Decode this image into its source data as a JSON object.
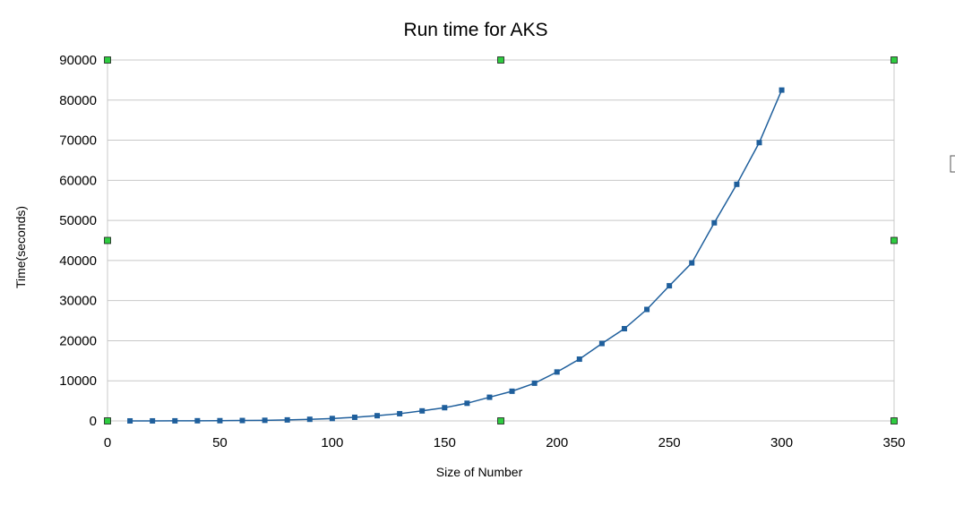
{
  "chart_data": {
    "type": "line",
    "title": "Run time for AKS",
    "xlabel": "Size of Number",
    "ylabel": "Time(seconds)",
    "xlim": [
      0,
      350
    ],
    "ylim": [
      0,
      90000
    ],
    "x_ticks": [
      "0",
      "50",
      "100",
      "150",
      "200",
      "250",
      "300",
      "350"
    ],
    "y_ticks": [
      "0",
      "10000",
      "20000",
      "30000",
      "40000",
      "50000",
      "60000",
      "70000",
      "80000",
      "90000"
    ],
    "grid": "horizontal",
    "legend": "none",
    "series_color": "#1f5f9c",
    "handle_color": "#2ecc40",
    "series": [
      {
        "x": [
          10,
          20,
          30,
          40,
          50,
          60,
          70,
          80,
          90,
          100,
          110,
          120,
          130,
          140,
          150,
          160,
          170,
          180,
          190,
          200,
          210,
          220,
          230,
          240,
          250,
          260,
          270,
          280,
          290,
          300
        ],
        "values": [
          5,
          10,
          20,
          40,
          60,
          100,
          150,
          250,
          400,
          600,
          900,
          1300,
          1800,
          2500,
          3300,
          4400,
          5900,
          7400,
          9400,
          12200,
          15400,
          19300,
          23000,
          27800,
          33700,
          39400,
          49400,
          59000,
          69400,
          82500
        ]
      }
    ]
  }
}
